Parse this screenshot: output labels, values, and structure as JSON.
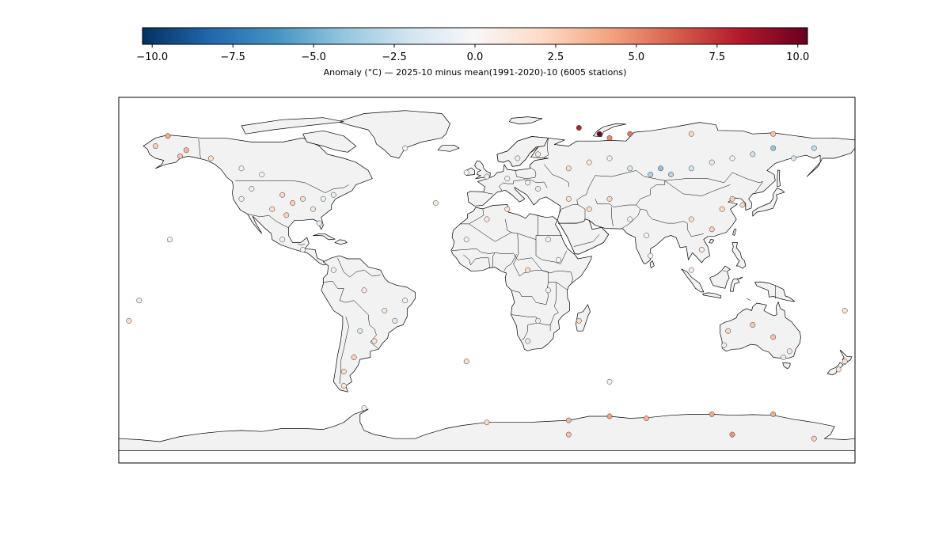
{
  "colorbar": {
    "label": "Anomaly (°C) — 2025-10 minus mean(1991-2020)-10 (6005 stations)",
    "vmin": -10.3,
    "vmax": 10.3,
    "ticks": [
      -10,
      -7.5,
      -5,
      -2.5,
      0,
      2.5,
      5,
      7.5,
      10
    ],
    "tick_labels": [
      "−10.0",
      "−7.5",
      "−5.0",
      "−2.5",
      "0.0",
      "2.5",
      "5.0",
      "7.5",
      "10.0"
    ],
    "colormap": "RdBu_r",
    "stops": [
      "#053061",
      "#2166ac",
      "#4393c3",
      "#92c5de",
      "#d1e5f0",
      "#f7f7f7",
      "#fddbc7",
      "#f4a582",
      "#d6604d",
      "#b2182b",
      "#67001f"
    ]
  },
  "map": {
    "projection": "PlateCarree",
    "land_color": "#f2f2f2",
    "coast_color": "#000000",
    "ocean_color": "#ffffff"
  },
  "chart_data": {
    "type": "scatter",
    "xlabel": "",
    "ylabel": "",
    "xlim": [
      -180,
      180
    ],
    "ylim": [
      -90,
      90
    ],
    "value_field": "anomaly_c",
    "points": [
      {
        "lon": -150,
        "lat": 61,
        "v": 3.0
      },
      {
        "lon": -156,
        "lat": 71,
        "v": 3.8
      },
      {
        "lon": -147,
        "lat": 64,
        "v": 3.5
      },
      {
        "lon": -162,
        "lat": 66,
        "v": 2.5
      },
      {
        "lon": -135,
        "lat": 60,
        "v": 1.8
      },
      {
        "lon": -120,
        "lat": 55,
        "v": 0.5
      },
      {
        "lon": -110,
        "lat": 52,
        "v": 0.3
      },
      {
        "lon": -100,
        "lat": 42,
        "v": 2.2
      },
      {
        "lon": -95,
        "lat": 38,
        "v": 2.6
      },
      {
        "lon": -90,
        "lat": 40,
        "v": 2.0
      },
      {
        "lon": -105,
        "lat": 35,
        "v": 1.8
      },
      {
        "lon": -98,
        "lat": 32,
        "v": 2.4
      },
      {
        "lon": -85,
        "lat": 35,
        "v": 1.2
      },
      {
        "lon": -80,
        "lat": 40,
        "v": -0.8
      },
      {
        "lon": -75,
        "lat": 42,
        "v": -1.0
      },
      {
        "lon": -120,
        "lat": 40,
        "v": -0.5
      },
      {
        "lon": -115,
        "lat": 45,
        "v": 0.8
      },
      {
        "lon": -82,
        "lat": 28,
        "v": -0.6
      },
      {
        "lon": -100,
        "lat": 20,
        "v": 0.4
      },
      {
        "lon": -90,
        "lat": 15,
        "v": 0.2
      },
      {
        "lon": -75,
        "lat": 5,
        "v": 0.6
      },
      {
        "lon": -60,
        "lat": -5,
        "v": 0.9
      },
      {
        "lon": -50,
        "lat": -15,
        "v": 1.1
      },
      {
        "lon": -45,
        "lat": -20,
        "v": -1.2
      },
      {
        "lon": -55,
        "lat": -30,
        "v": 1.6
      },
      {
        "lon": -65,
        "lat": -38,
        "v": 2.4
      },
      {
        "lon": -70,
        "lat": -45,
        "v": 2.0
      },
      {
        "lon": -70,
        "lat": -52,
        "v": 1.4
      },
      {
        "lon": -62,
        "lat": -25,
        "v": -1.4
      },
      {
        "lon": -40,
        "lat": -10,
        "v": 0.5
      },
      {
        "lon": -10,
        "lat": 53,
        "v": 0.3
      },
      {
        "lon": 0,
        "lat": 51,
        "v": 0.6
      },
      {
        "lon": 10,
        "lat": 50,
        "v": 0.4
      },
      {
        "lon": 20,
        "lat": 48,
        "v": -0.4
      },
      {
        "lon": 25,
        "lat": 45,
        "v": -1.0
      },
      {
        "lon": 15,
        "lat": 60,
        "v": 0.8
      },
      {
        "lon": 25,
        "lat": 62,
        "v": 1.2
      },
      {
        "lon": 40,
        "lat": 55,
        "v": 1.6
      },
      {
        "lon": 50,
        "lat": 58,
        "v": 1.0
      },
      {
        "lon": 60,
        "lat": 60,
        "v": 0.5
      },
      {
        "lon": 70,
        "lat": 55,
        "v": -1.5
      },
      {
        "lon": 80,
        "lat": 52,
        "v": -3.2
      },
      {
        "lon": 85,
        "lat": 55,
        "v": -4.2
      },
      {
        "lon": 90,
        "lat": 52,
        "v": -3.0
      },
      {
        "lon": 100,
        "lat": 55,
        "v": -2.0
      },
      {
        "lon": 110,
        "lat": 58,
        "v": -1.2
      },
      {
        "lon": 120,
        "lat": 60,
        "v": 0.4
      },
      {
        "lon": 130,
        "lat": 62,
        "v": -2.2
      },
      {
        "lon": 140,
        "lat": 65,
        "v": -4.0
      },
      {
        "lon": 150,
        "lat": 60,
        "v": -1.8
      },
      {
        "lon": 160,
        "lat": 65,
        "v": -2.6
      },
      {
        "lon": 60,
        "lat": 70,
        "v": 5.0
      },
      {
        "lon": 45,
        "lat": 75,
        "v": 8.0
      },
      {
        "lon": 55,
        "lat": 72,
        "v": 10.0
      },
      {
        "lon": 70,
        "lat": 72,
        "v": 5.5
      },
      {
        "lon": 100,
        "lat": 72,
        "v": 2.2
      },
      {
        "lon": 140,
        "lat": 72,
        "v": 3.0
      },
      {
        "lon": 40,
        "lat": 40,
        "v": 1.4
      },
      {
        "lon": 50,
        "lat": 35,
        "v": 1.8
      },
      {
        "lon": 60,
        "lat": 40,
        "v": 2.2
      },
      {
        "lon": 70,
        "lat": 30,
        "v": 0.6
      },
      {
        "lon": 78,
        "lat": 22,
        "v": 0.3
      },
      {
        "lon": 80,
        "lat": 12,
        "v": 0.4
      },
      {
        "lon": 100,
        "lat": 30,
        "v": 1.8
      },
      {
        "lon": 110,
        "lat": 25,
        "v": 2.4
      },
      {
        "lon": 115,
        "lat": 35,
        "v": 2.0
      },
      {
        "lon": 120,
        "lat": 40,
        "v": 2.6
      },
      {
        "lon": 125,
        "lat": 37,
        "v": 2.2
      },
      {
        "lon": 105,
        "lat": 15,
        "v": 1.0
      },
      {
        "lon": 100,
        "lat": 5,
        "v": 0.8
      },
      {
        "lon": 10,
        "lat": 35,
        "v": 1.6
      },
      {
        "lon": 0,
        "lat": 30,
        "v": 1.2
      },
      {
        "lon": -10,
        "lat": 20,
        "v": 0.6
      },
      {
        "lon": 30,
        "lat": 20,
        "v": 0.4
      },
      {
        "lon": 35,
        "lat": 10,
        "v": 0.2
      },
      {
        "lon": 20,
        "lat": 5,
        "v": 1.8
      },
      {
        "lon": 30,
        "lat": -5,
        "v": 0.6
      },
      {
        "lon": 25,
        "lat": -20,
        "v": 0.9
      },
      {
        "lon": 20,
        "lat": -30,
        "v": 1.2
      },
      {
        "lon": 45,
        "lat": -20,
        "v": 2.0
      },
      {
        "lon": 118,
        "lat": -25,
        "v": 2.2
      },
      {
        "lon": 130,
        "lat": -22,
        "v": 2.8
      },
      {
        "lon": 140,
        "lat": -28,
        "v": 3.0
      },
      {
        "lon": 148,
        "lat": -35,
        "v": 1.0
      },
      {
        "lon": 145,
        "lat": -38,
        "v": -1.0
      },
      {
        "lon": 116,
        "lat": -32,
        "v": -0.8
      },
      {
        "lon": 175,
        "lat": -40,
        "v": 1.6
      },
      {
        "lon": 172,
        "lat": -44,
        "v": 1.2
      },
      {
        "lon": -60,
        "lat": -63,
        "v": 0.8
      },
      {
        "lon": 0,
        "lat": -70,
        "v": 2.2
      },
      {
        "lon": 40,
        "lat": -69,
        "v": 3.5
      },
      {
        "lon": 60,
        "lat": -67,
        "v": 4.2
      },
      {
        "lon": 78,
        "lat": -68,
        "v": 3.5
      },
      {
        "lon": 110,
        "lat": -66,
        "v": 4.0
      },
      {
        "lon": 140,
        "lat": -66,
        "v": 3.8
      },
      {
        "lon": 120,
        "lat": -76,
        "v": 4.5
      },
      {
        "lon": 40,
        "lat": -76,
        "v": 3.0
      },
      {
        "lon": 160,
        "lat": -78,
        "v": 2.5
      },
      {
        "lon": -170,
        "lat": -10,
        "v": 1.0
      },
      {
        "lon": -175,
        "lat": -20,
        "v": 1.8
      },
      {
        "lon": -155,
        "lat": 20,
        "v": 0.3
      },
      {
        "lon": -25,
        "lat": 38,
        "v": 1.2
      },
      {
        "lon": -40,
        "lat": 65,
        "v": 0.5
      },
      {
        "lon": 175,
        "lat": -15,
        "v": 1.4
      },
      {
        "lon": 60,
        "lat": -50,
        "v": 0.6
      },
      {
        "lon": -10,
        "lat": -40,
        "v": 2.0
      }
    ]
  }
}
